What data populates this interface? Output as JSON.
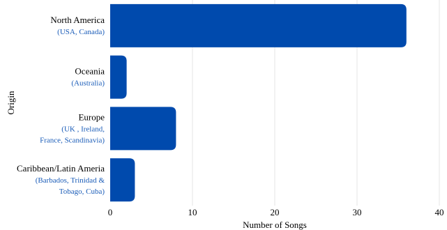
{
  "chart_data": {
    "type": "bar",
    "orientation": "horizontal",
    "xlabel": "Number of Songs",
    "ylabel": "Origin",
    "xlim": [
      0,
      40
    ],
    "xticks": [
      0,
      10,
      20,
      30,
      40
    ],
    "grid": true,
    "bar_color": "#004AAD",
    "sublabel_color": "#1A5CB8",
    "categories": [
      {
        "name": "North America",
        "sub": [
          "(USA, Canada)"
        ],
        "value": 36
      },
      {
        "name": "Oceania",
        "sub": [
          "(Australia)"
        ],
        "value": 2
      },
      {
        "name": "Europe",
        "sub": [
          "(UK , Ireland,",
          "France, Scandinavia)"
        ],
        "value": 8
      },
      {
        "name": "Caribbean/Latin Ameria",
        "sub": [
          "(Barbados, Trinidad &",
          "Tobago, Cuba)"
        ],
        "value": 3
      }
    ]
  }
}
